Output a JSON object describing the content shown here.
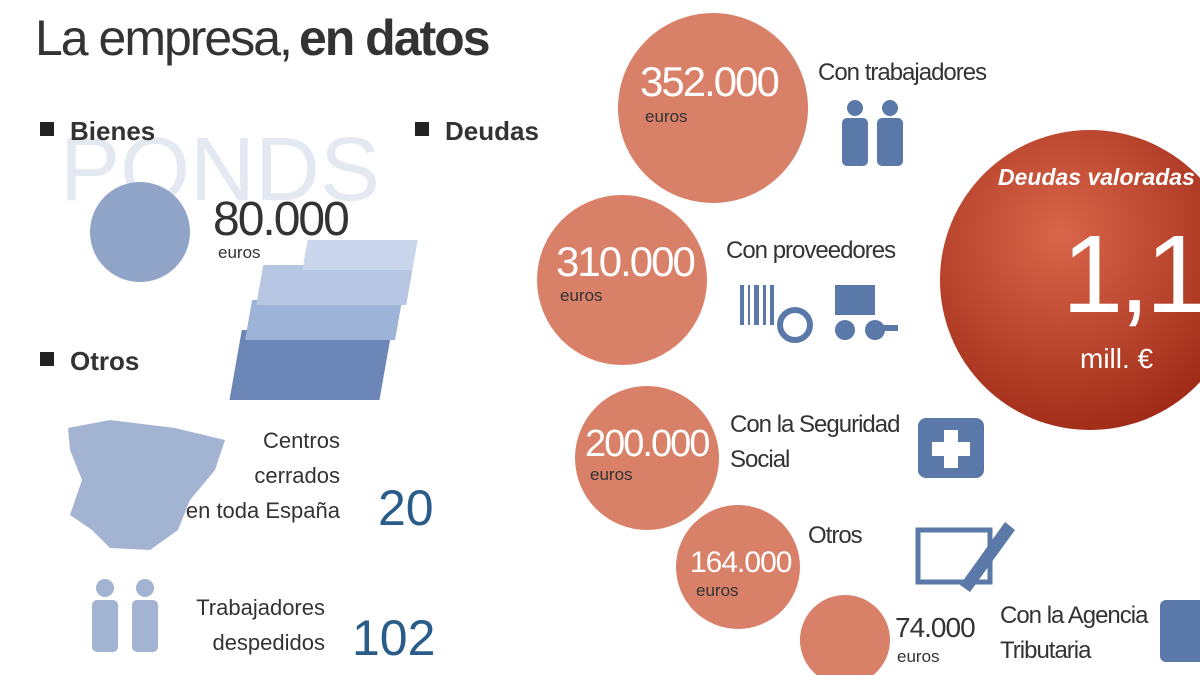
{
  "header": {
    "title_light": "La empresa,",
    "title_bold": "en datos"
  },
  "watermark": "PONDS",
  "bienes": {
    "label": "Bienes",
    "amount": "80.000",
    "unit": "euros"
  },
  "otros": {
    "label": "Otros",
    "items": [
      {
        "lines": [
          "Centros",
          "cerrados",
          "en toda España"
        ],
        "value": "20"
      },
      {
        "lines": [
          "Trabajadores",
          "despedidos"
        ],
        "value": "102"
      }
    ]
  },
  "deudas": {
    "label": "Deudas",
    "items": [
      {
        "amount": "352.000",
        "unit": "euros",
        "lines": [
          "Con trabajadores"
        ]
      },
      {
        "amount": "310.000",
        "unit": "euros",
        "lines": [
          "Con proveedores"
        ]
      },
      {
        "amount": "200.000",
        "unit": "euros",
        "lines": [
          "Con la Seguridad",
          "Social"
        ]
      },
      {
        "amount": "164.000",
        "unit": "euros",
        "lines": [
          "Otros"
        ]
      },
      {
        "amount": "74.000",
        "unit": "euros",
        "lines": [
          "Con la Agencia",
          "Tributaria"
        ]
      }
    ]
  },
  "total": {
    "label": "Deudas valoradas",
    "value": "1,1",
    "unit": "mill. €"
  }
}
